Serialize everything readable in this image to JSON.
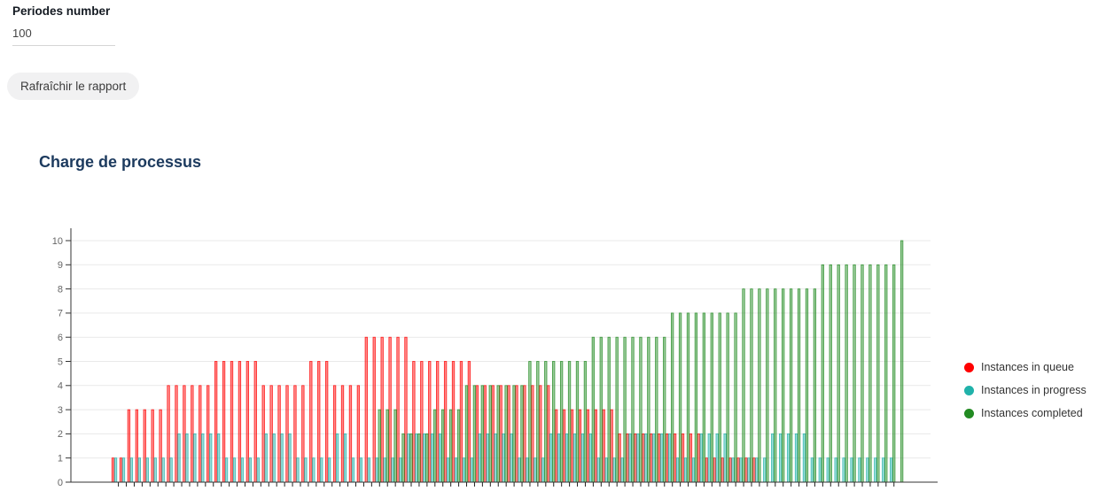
{
  "form": {
    "periods_label": "Periodes number",
    "periods_value": "100",
    "refresh_button_label": "Rafraîchir le rapport"
  },
  "chart": {
    "title": "Charge de processus"
  },
  "colors": {
    "queue": "#ff0000",
    "progress": "#20b2aa",
    "completed": "#228b22",
    "grid": "#e9e9e9",
    "axis": "#333333",
    "tick_label": "#666666",
    "title": "#1c3a5e"
  },
  "chart_data": {
    "type": "bar",
    "title": "Charge de processus",
    "periods": 100,
    "x": "period index (1-100, ticks unlabeled)",
    "xlabel": "",
    "ylabel": "",
    "ylim": [
      0,
      10
    ],
    "yticks": [
      0,
      1,
      2,
      3,
      4,
      5,
      6,
      7,
      8,
      9,
      10
    ],
    "grid": "horizontal",
    "legend_position": "right",
    "series": [
      {
        "name": "Instances in queue",
        "color": "#ff0000",
        "values": [
          1,
          1,
          3,
          3,
          3,
          3,
          3,
          4,
          4,
          4,
          4,
          4,
          4,
          5,
          5,
          5,
          5,
          5,
          5,
          4,
          4,
          4,
          4,
          4,
          4,
          5,
          5,
          5,
          4,
          4,
          4,
          4,
          6,
          6,
          6,
          6,
          6,
          6,
          5,
          5,
          5,
          5,
          5,
          5,
          5,
          5,
          4,
          4,
          4,
          4,
          4,
          4,
          4,
          4,
          4,
          4,
          3,
          3,
          3,
          3,
          3,
          3,
          3,
          3,
          2,
          2,
          2,
          2,
          2,
          2,
          2,
          2,
          2,
          2,
          2,
          1,
          1,
          1,
          1,
          1,
          1,
          1,
          0,
          0,
          0,
          0,
          0,
          0,
          0,
          0,
          0,
          0,
          0,
          0,
          0,
          0,
          0,
          0,
          0,
          0
        ]
      },
      {
        "name": "Instances in progress",
        "color": "#20b2aa",
        "values": [
          1,
          1,
          1,
          1,
          1,
          1,
          1,
          1,
          2,
          2,
          2,
          2,
          2,
          2,
          1,
          1,
          1,
          1,
          1,
          2,
          2,
          2,
          2,
          1,
          1,
          1,
          1,
          1,
          2,
          2,
          1,
          1,
          1,
          1,
          1,
          1,
          1,
          2,
          2,
          2,
          2,
          2,
          1,
          1,
          1,
          1,
          2,
          2,
          2,
          2,
          2,
          1,
          1,
          1,
          1,
          2,
          2,
          2,
          2,
          2,
          2,
          1,
          1,
          1,
          1,
          2,
          2,
          2,
          2,
          2,
          2,
          1,
          1,
          1,
          2,
          2,
          2,
          2,
          1,
          1,
          1,
          1,
          1,
          2,
          2,
          2,
          2,
          2,
          1,
          1,
          1,
          1,
          1,
          1,
          1,
          1,
          1,
          1,
          1,
          0
        ]
      },
      {
        "name": "Instances completed",
        "color": "#228b22",
        "values": [
          0,
          0,
          0,
          0,
          0,
          0,
          0,
          0,
          0,
          0,
          0,
          0,
          0,
          0,
          0,
          0,
          0,
          0,
          0,
          0,
          0,
          0,
          0,
          0,
          0,
          0,
          0,
          0,
          0,
          0,
          0,
          0,
          0,
          3,
          3,
          3,
          2,
          2,
          2,
          2,
          3,
          3,
          3,
          3,
          4,
          4,
          4,
          4,
          4,
          4,
          4,
          4,
          5,
          5,
          5,
          5,
          5,
          5,
          5,
          5,
          6,
          6,
          6,
          6,
          6,
          6,
          6,
          6,
          6,
          6,
          7,
          7,
          7,
          7,
          7,
          7,
          7,
          7,
          7,
          8,
          8,
          8,
          8,
          8,
          8,
          8,
          8,
          8,
          8,
          9,
          9,
          9,
          9,
          9,
          9,
          9,
          9,
          9,
          9,
          10
        ]
      }
    ]
  }
}
